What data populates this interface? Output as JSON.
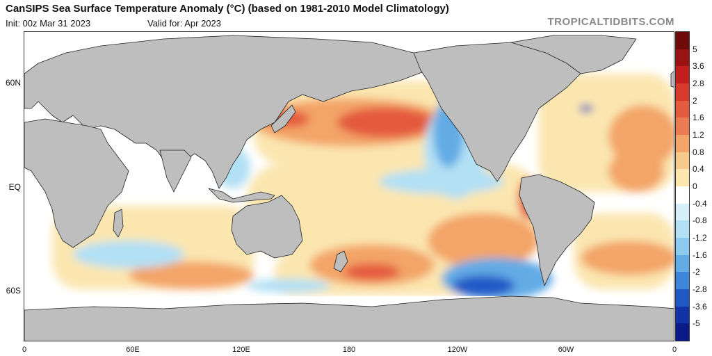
{
  "header": {
    "title": "CanSIPS Sea Surface Temperature Anomaly (°C) (based on 1981-2010 Model Climatology)",
    "init": "Init: 00z Mar 31 2023",
    "valid": "Valid for: Apr 2023",
    "brand": "TROPICALTIDBITS.COM"
  },
  "axes": {
    "lat_labels": [
      "60N",
      "EQ",
      "60S"
    ],
    "lon_labels": [
      "0",
      "60E",
      "120E",
      "180",
      "120W",
      "60W",
      "0"
    ]
  },
  "colorbar": {
    "labels": [
      "5",
      "3.6",
      "2.8",
      "2",
      "1.6",
      "1.2",
      "0.8",
      "0.4",
      "0",
      "-0.4",
      "-0.8",
      "-1.2",
      "-1.6",
      "-2",
      "-2.8",
      "-3.6",
      "-5"
    ],
    "colors": [
      "#6e0a0a",
      "#9b1212",
      "#c21e1e",
      "#d83a2c",
      "#e45a3c",
      "#ec7d52",
      "#f3a468",
      "#f7c98a",
      "#fbe6b0",
      "#ffffff",
      "#d6eef8",
      "#b2e0f4",
      "#8ccbef",
      "#62abe5",
      "#3d86d9",
      "#2059c6",
      "#1232a8",
      "#0a1a86"
    ]
  },
  "map_colors": {
    "land": "#bebebe",
    "coast": "#222222",
    "warm_light": "#fbe6b0",
    "warm_mid": "#f3a468",
    "warm_strong": "#e45a3c",
    "cool_light": "#b2e0f4",
    "cool_mid": "#62abe5",
    "cool_strong": "#2059c6"
  }
}
